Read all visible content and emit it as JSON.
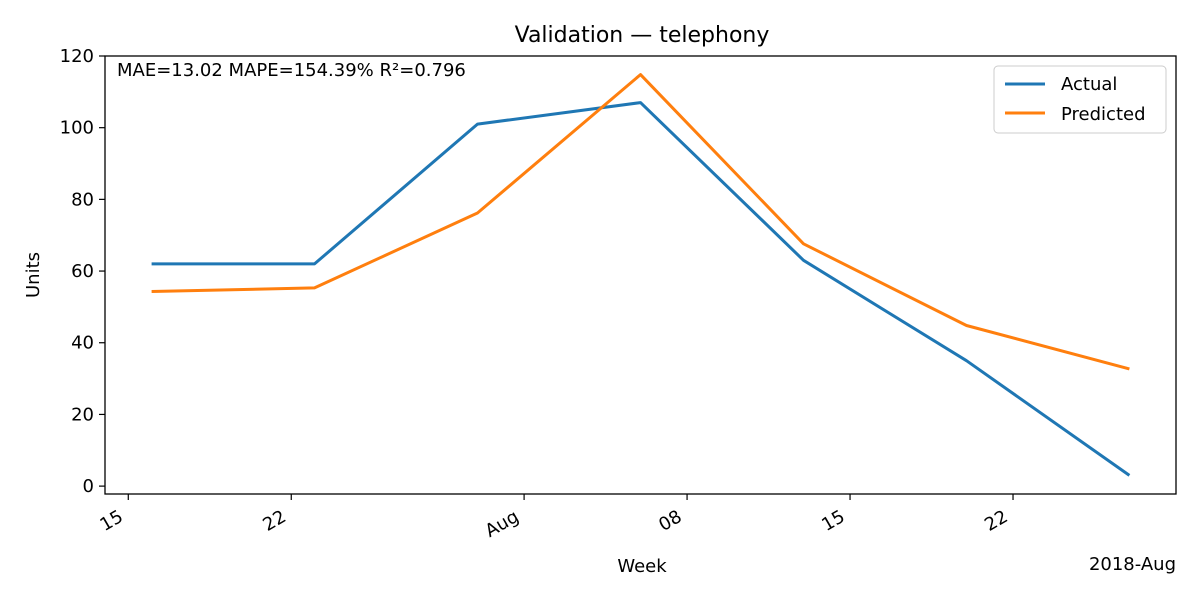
{
  "chart_data": {
    "type": "line",
    "title": "Validation — telephony",
    "xlabel": "Week",
    "ylabel": "Units",
    "x_offset_label": "2018-Aug",
    "annotation": "MAE=13.02  MAPE=154.39%  R²=0.796",
    "x": [
      "2018-07-16",
      "2018-07-23",
      "2018-07-30",
      "2018-08-06",
      "2018-08-13",
      "2018-08-20",
      "2018-08-27"
    ],
    "x_ticks": [
      {
        "date": "2018-07-15",
        "label": "15"
      },
      {
        "date": "2018-07-22",
        "label": "22"
      },
      {
        "date": "2018-08-01",
        "label": "Aug"
      },
      {
        "date": "2018-08-08",
        "label": "08"
      },
      {
        "date": "2018-08-15",
        "label": "15"
      },
      {
        "date": "2018-08-22",
        "label": "22"
      }
    ],
    "xlim": [
      "2018-07-14",
      "2018-08-29"
    ],
    "ylim": [
      -2.2,
      120
    ],
    "y_ticks": [
      0,
      20,
      40,
      60,
      80,
      100,
      120
    ],
    "series": [
      {
        "name": "Actual",
        "color": "#1f77b4",
        "values": [
          62,
          62,
          101,
          107,
          63,
          35,
          3
        ]
      },
      {
        "name": "Predicted",
        "color": "#ff7f0e",
        "values": [
          54.3,
          55.3,
          76.2,
          114.8,
          67.6,
          44.8,
          32.7
        ]
      }
    ],
    "legend_position": "top-right",
    "grid": false
  }
}
